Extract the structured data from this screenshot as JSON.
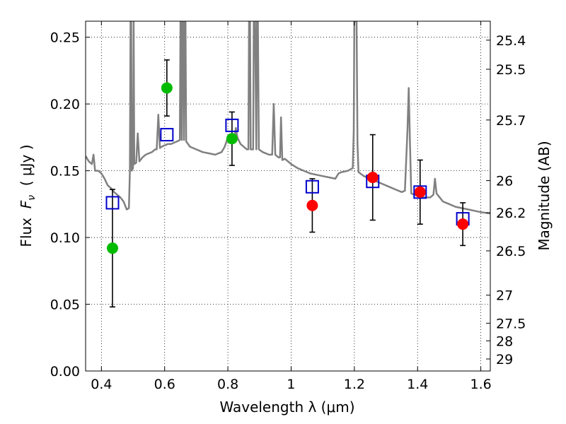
{
  "chart_data": {
    "type": "scatter",
    "xlabel": "Wavelength  λ (μm)",
    "ylabel_parts": [
      "Flux  ",
      "F",
      "ν",
      "  ( μJy )"
    ],
    "y2label": "Magnitude (AB)",
    "xlim": [
      0.35,
      1.63
    ],
    "ylim": [
      0.0,
      0.262
    ],
    "x_ticks": [
      0.4,
      0.6,
      0.8,
      1.0,
      1.2,
      1.4,
      1.6
    ],
    "x_tick_labels": [
      "0.4",
      "0.6",
      "0.8",
      "1",
      "1.2",
      "1.4",
      "1.6"
    ],
    "y_ticks": [
      0.0,
      0.05,
      0.1,
      0.15,
      0.2,
      0.25
    ],
    "y_tick_labels": [
      "0.00",
      "0.05",
      "0.10",
      "0.15",
      "0.20",
      "0.25"
    ],
    "grid": true,
    "mag_ticks": [
      {
        "label": "25.4",
        "flux": 0.2478
      },
      {
        "label": "25.5",
        "flux": 0.226
      },
      {
        "label": "25.7",
        "flux": 0.188
      },
      {
        "label": "26",
        "flux": 0.1426
      },
      {
        "label": "26.2",
        "flux": 0.1186
      },
      {
        "label": "26.5",
        "flux": 0.09
      },
      {
        "label": "27",
        "flux": 0.0568
      },
      {
        "label": "27.5",
        "flux": 0.0358
      },
      {
        "label": "28",
        "flux": 0.0226
      },
      {
        "label": "29",
        "flux": 0.009
      }
    ],
    "series": [
      {
        "name": "model-spectrum",
        "kind": "line",
        "color": "#808080",
        "points": [
          [
            0.35,
            0.161
          ],
          [
            0.36,
            0.157
          ],
          [
            0.37,
            0.155
          ],
          [
            0.375,
            0.162
          ],
          [
            0.38,
            0.15
          ],
          [
            0.39,
            0.15
          ],
          [
            0.4,
            0.148
          ],
          [
            0.41,
            0.144
          ],
          [
            0.42,
            0.139
          ],
          [
            0.43,
            0.137
          ],
          [
            0.44,
            0.134
          ],
          [
            0.45,
            0.132
          ],
          [
            0.46,
            0.13
          ],
          [
            0.47,
            0.127
          ],
          [
            0.48,
            0.121
          ],
          [
            0.487,
            0.122
          ],
          [
            0.49,
            0.15
          ],
          [
            0.492,
            0.262
          ],
          [
            0.494,
            0.262
          ],
          [
            0.496,
            0.15
          ],
          [
            0.5,
            0.152
          ],
          [
            0.502,
            0.262
          ],
          [
            0.504,
            0.155
          ],
          [
            0.51,
            0.156
          ],
          [
            0.515,
            0.178
          ],
          [
            0.52,
            0.157
          ],
          [
            0.53,
            0.16
          ],
          [
            0.54,
            0.162
          ],
          [
            0.55,
            0.163
          ],
          [
            0.56,
            0.164
          ],
          [
            0.57,
            0.166
          ],
          [
            0.575,
            0.166
          ],
          [
            0.58,
            0.192
          ],
          [
            0.585,
            0.167
          ],
          [
            0.59,
            0.168
          ],
          [
            0.6,
            0.169
          ],
          [
            0.61,
            0.17
          ],
          [
            0.62,
            0.17
          ],
          [
            0.63,
            0.171
          ],
          [
            0.64,
            0.172
          ],
          [
            0.648,
            0.173
          ],
          [
            0.65,
            0.262
          ],
          [
            0.652,
            0.262
          ],
          [
            0.654,
            0.173
          ],
          [
            0.656,
            0.262
          ],
          [
            0.659,
            0.262
          ],
          [
            0.661,
            0.173
          ],
          [
            0.663,
            0.262
          ],
          [
            0.666,
            0.262
          ],
          [
            0.668,
            0.172
          ],
          [
            0.68,
            0.168
          ],
          [
            0.7,
            0.166
          ],
          [
            0.72,
            0.164
          ],
          [
            0.74,
            0.163
          ],
          [
            0.76,
            0.162
          ],
          [
            0.78,
            0.164
          ],
          [
            0.79,
            0.168
          ],
          [
            0.8,
            0.175
          ],
          [
            0.81,
            0.171
          ],
          [
            0.82,
            0.172
          ],
          [
            0.825,
            0.182
          ],
          [
            0.83,
            0.175
          ],
          [
            0.84,
            0.17
          ],
          [
            0.85,
            0.168
          ],
          [
            0.86,
            0.166
          ],
          [
            0.865,
            0.166
          ],
          [
            0.867,
            0.262
          ],
          [
            0.87,
            0.262
          ],
          [
            0.872,
            0.166
          ],
          [
            0.88,
            0.166
          ],
          [
            0.882,
            0.262
          ],
          [
            0.886,
            0.262
          ],
          [
            0.89,
            0.166
          ],
          [
            0.892,
            0.262
          ],
          [
            0.895,
            0.262
          ],
          [
            0.898,
            0.166
          ],
          [
            0.91,
            0.164
          ],
          [
            0.93,
            0.162
          ],
          [
            0.94,
            0.162
          ],
          [
            0.945,
            0.2
          ],
          [
            0.95,
            0.162
          ],
          [
            0.96,
            0.16
          ],
          [
            0.965,
            0.16
          ],
          [
            0.968,
            0.19
          ],
          [
            0.972,
            0.158
          ],
          [
            0.98,
            0.159
          ],
          [
            1.0,
            0.155
          ],
          [
            1.02,
            0.152
          ],
          [
            1.04,
            0.15
          ],
          [
            1.06,
            0.148
          ],
          [
            1.08,
            0.147
          ],
          [
            1.1,
            0.146
          ],
          [
            1.12,
            0.145
          ],
          [
            1.14,
            0.144
          ],
          [
            1.15,
            0.148
          ],
          [
            1.16,
            0.149
          ],
          [
            1.18,
            0.15
          ],
          [
            1.195,
            0.152
          ],
          [
            1.198,
            0.18
          ],
          [
            1.2,
            0.262
          ],
          [
            1.204,
            0.262
          ],
          [
            1.207,
            0.262
          ],
          [
            1.21,
            0.17
          ],
          [
            1.213,
            0.149
          ],
          [
            1.23,
            0.146
          ],
          [
            1.25,
            0.144
          ],
          [
            1.27,
            0.142
          ],
          [
            1.29,
            0.14
          ],
          [
            1.31,
            0.138
          ],
          [
            1.33,
            0.136
          ],
          [
            1.35,
            0.134
          ],
          [
            1.36,
            0.135
          ],
          [
            1.368,
            0.18
          ],
          [
            1.372,
            0.212
          ],
          [
            1.376,
            0.17
          ],
          [
            1.38,
            0.133
          ],
          [
            1.4,
            0.131
          ],
          [
            1.42,
            0.13
          ],
          [
            1.44,
            0.13
          ],
          [
            1.45,
            0.132
          ],
          [
            1.455,
            0.144
          ],
          [
            1.46,
            0.133
          ],
          [
            1.48,
            0.127
          ],
          [
            1.5,
            0.125
          ],
          [
            1.52,
            0.123
          ],
          [
            1.54,
            0.122
          ],
          [
            1.56,
            0.121
          ],
          [
            1.58,
            0.12
          ],
          [
            1.6,
            0.119
          ],
          [
            1.63,
            0.118
          ]
        ]
      },
      {
        "name": "model-photometry",
        "kind": "open-square",
        "color": "#0000cc",
        "x": [
          0.435,
          0.607,
          0.813,
          1.067,
          1.258,
          1.408,
          1.543
        ],
        "y": [
          0.126,
          0.177,
          0.184,
          0.138,
          0.142,
          0.134,
          0.114
        ]
      },
      {
        "name": "observed-optical",
        "kind": "filled-circle",
        "color": "#00bb00",
        "x": [
          0.435,
          0.607,
          0.813
        ],
        "y": [
          0.092,
          0.212,
          0.174
        ],
        "y_err": [
          0.044,
          0.021,
          0.02
        ]
      },
      {
        "name": "observed-nir",
        "kind": "filled-circle",
        "color": "#ff0000",
        "x": [
          1.067,
          1.258,
          1.408,
          1.543
        ],
        "y": [
          0.124,
          0.145,
          0.134,
          0.11
        ],
        "y_err": [
          0.02,
          0.032,
          0.024,
          0.016
        ]
      }
    ]
  }
}
